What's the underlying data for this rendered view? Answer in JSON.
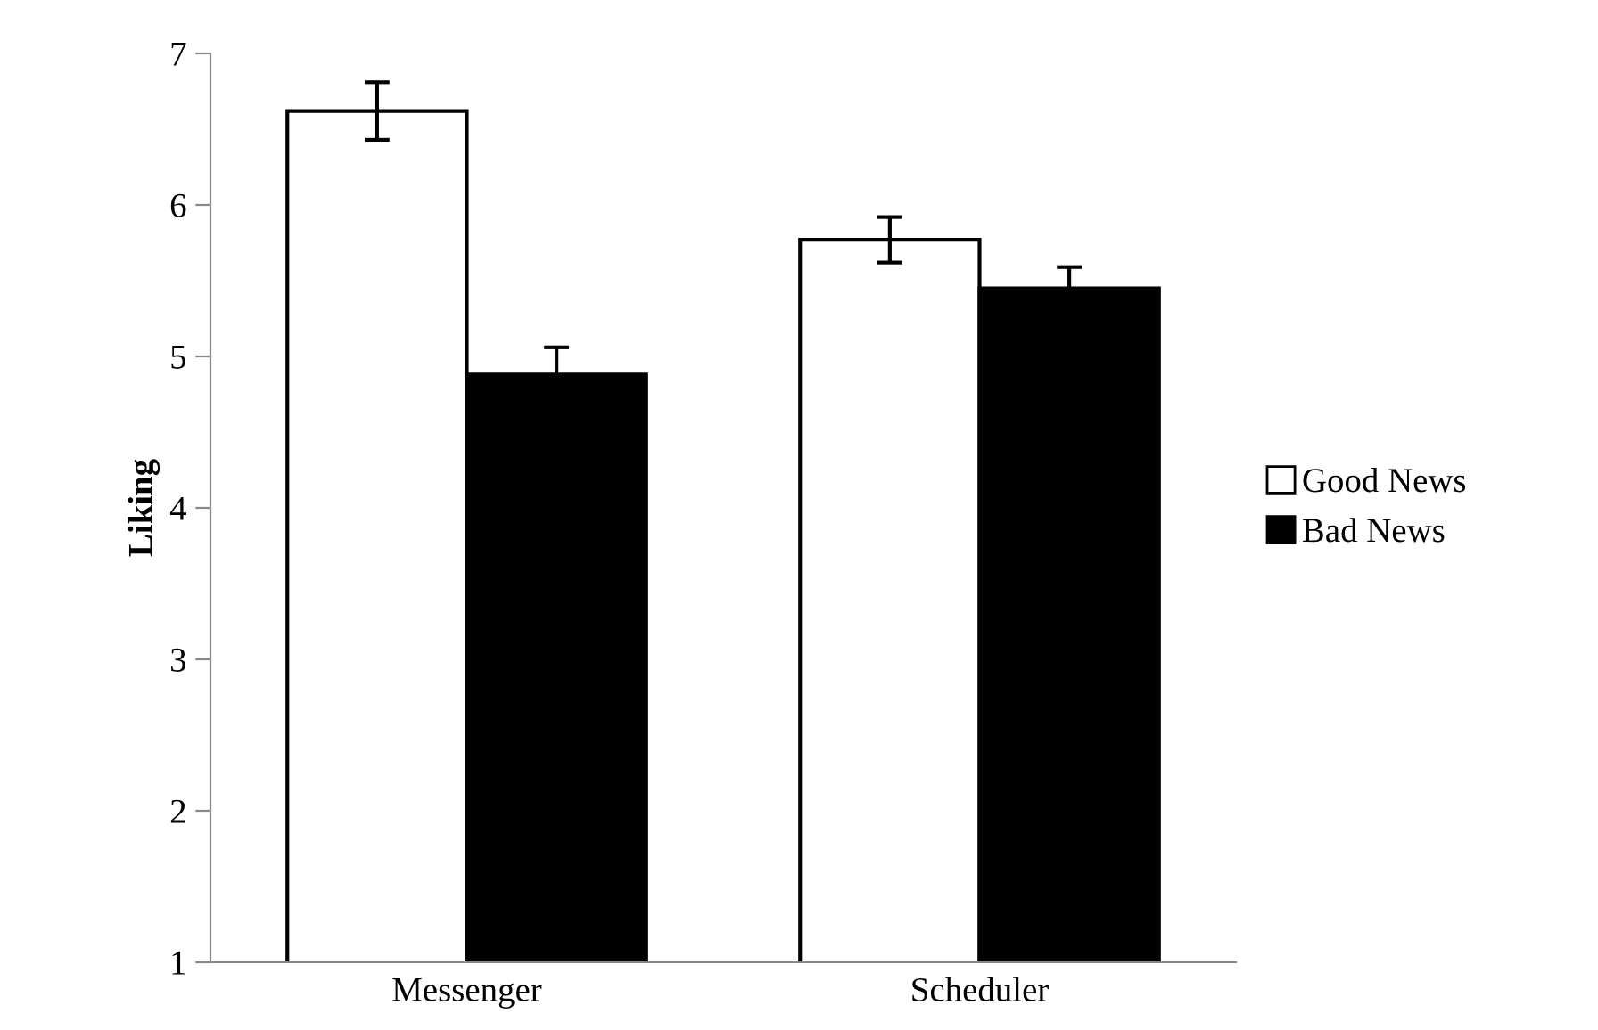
{
  "chart_data": {
    "type": "bar",
    "ylabel": "Liking",
    "categories": [
      "Messenger",
      "Scheduler"
    ],
    "series": [
      {
        "name": "Good News",
        "color": "#ffffff",
        "values": [
          6.62,
          5.77
        ],
        "errors": [
          0.19,
          0.15
        ]
      },
      {
        "name": "Bad News",
        "color": "#000000",
        "values": [
          4.88,
          5.45
        ],
        "errors": [
          0.18,
          0.14
        ]
      }
    ],
    "ylim": [
      1,
      7
    ],
    "yticks": [
      1,
      2,
      3,
      4,
      5,
      6,
      7
    ],
    "grid": false,
    "legend": "right"
  }
}
